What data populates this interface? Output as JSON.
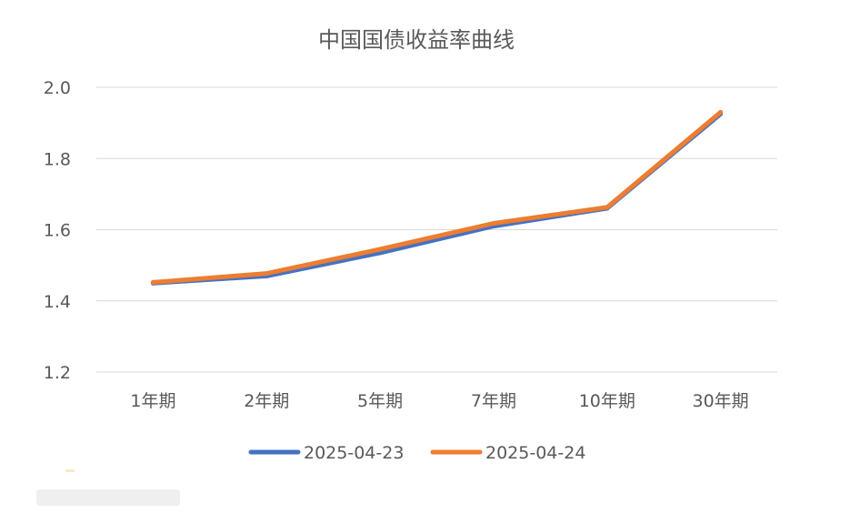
{
  "chart_data": {
    "type": "line",
    "title": "中国国债收益率曲线",
    "categories": [
      "1年期",
      "2年期",
      "5年期",
      "7年期",
      "10年期",
      "30年期"
    ],
    "series": [
      {
        "name": "2025-04-23",
        "values": [
          1.45,
          1.47,
          1.535,
          1.61,
          1.66,
          1.925
        ],
        "color": "#4472C4"
      },
      {
        "name": "2025-04-24",
        "values": [
          1.452,
          1.477,
          1.545,
          1.618,
          1.663,
          1.93
        ],
        "color": "#ED7D31"
      }
    ],
    "y_ticks": [
      "1.2",
      "1.4",
      "1.6",
      "1.8",
      "2.0"
    ],
    "ylim": [
      1.2,
      2.0
    ],
    "grid": true,
    "legend_position": "bottom"
  }
}
